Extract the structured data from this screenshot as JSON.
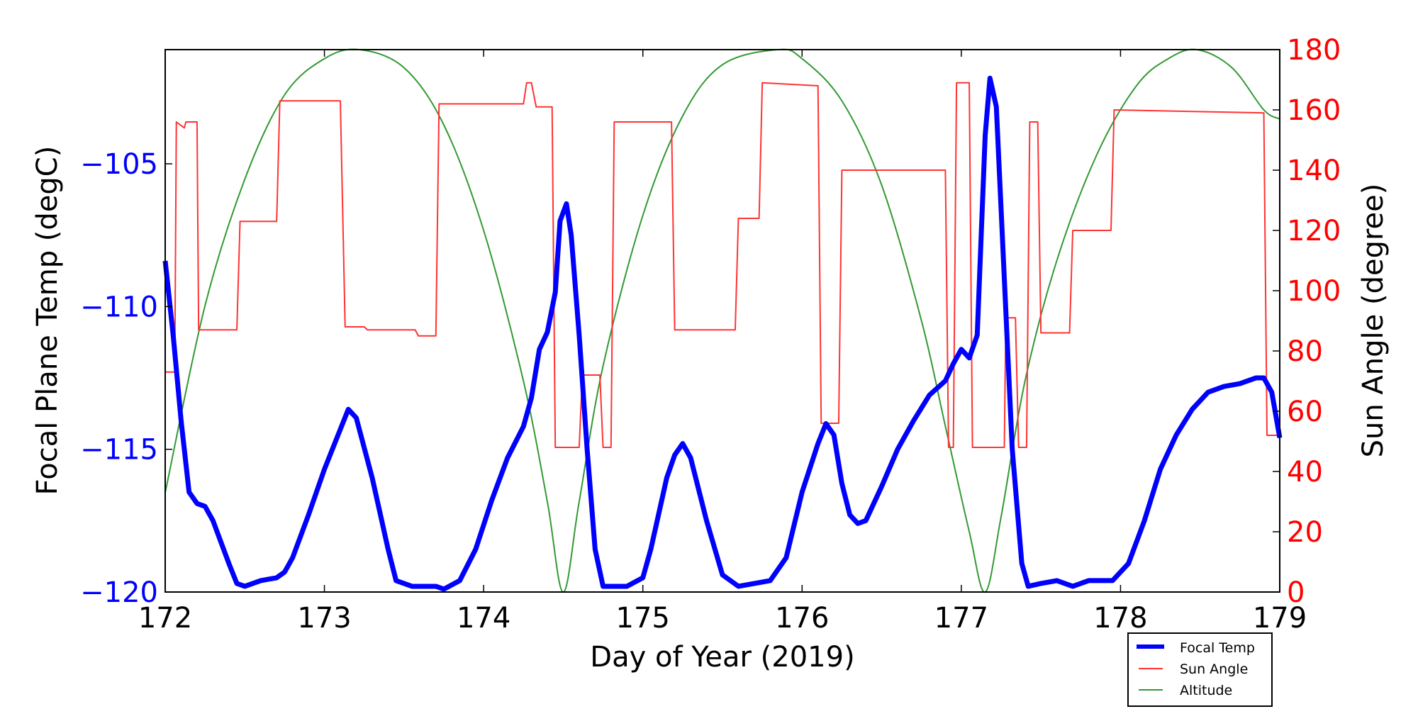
{
  "chart_data": {
    "type": "line",
    "xlabel": "Day of Year (2019)",
    "ylabel_left": "Focal Plane Temp (degC)",
    "ylabel_right": "Sun Angle (degree)",
    "xlim": [
      172,
      179
    ],
    "ylim_left": [
      -120,
      -101
    ],
    "ylim_right": [
      0,
      180
    ],
    "xticks": [
      172,
      173,
      174,
      175,
      176,
      177,
      178,
      179
    ],
    "yticks_left": [
      -120,
      -115,
      -110,
      -105
    ],
    "yticks_right": [
      0,
      20,
      40,
      60,
      80,
      100,
      120,
      140,
      160,
      180
    ],
    "grid": false,
    "legend_placement": "below-right",
    "colors": {
      "left_axis": "#0000ff",
      "right_axis": "#ff0000",
      "focal": "#0000ff",
      "sun": "#ff3333",
      "altitude": "#339933"
    },
    "series": [
      {
        "name": "Focal Temp",
        "axis": "left",
        "points": [
          [
            172.0,
            -108.4
          ],
          [
            172.05,
            -111
          ],
          [
            172.1,
            -114
          ],
          [
            172.15,
            -116.5
          ],
          [
            172.2,
            -116.9
          ],
          [
            172.25,
            -117
          ],
          [
            172.3,
            -117.5
          ],
          [
            172.4,
            -119
          ],
          [
            172.45,
            -119.7
          ],
          [
            172.5,
            -119.8
          ],
          [
            172.6,
            -119.6
          ],
          [
            172.7,
            -119.5
          ],
          [
            172.75,
            -119.3
          ],
          [
            172.8,
            -118.8
          ],
          [
            172.9,
            -117.3
          ],
          [
            173.0,
            -115.7
          ],
          [
            173.1,
            -114.3
          ],
          [
            173.15,
            -113.6
          ],
          [
            173.2,
            -113.9
          ],
          [
            173.3,
            -116
          ],
          [
            173.4,
            -118.5
          ],
          [
            173.45,
            -119.6
          ],
          [
            173.55,
            -119.8
          ],
          [
            173.7,
            -119.8
          ],
          [
            173.75,
            -119.9
          ],
          [
            173.85,
            -119.6
          ],
          [
            173.95,
            -118.5
          ],
          [
            174.05,
            -116.8
          ],
          [
            174.15,
            -115.3
          ],
          [
            174.25,
            -114.2
          ],
          [
            174.3,
            -113.2
          ],
          [
            174.35,
            -111.5
          ],
          [
            174.4,
            -110.9
          ],
          [
            174.45,
            -109.5
          ],
          [
            174.48,
            -107
          ],
          [
            174.52,
            -106.4
          ],
          [
            174.55,
            -107.5
          ],
          [
            174.6,
            -111
          ],
          [
            174.65,
            -115
          ],
          [
            174.7,
            -118.5
          ],
          [
            174.75,
            -119.8
          ],
          [
            174.85,
            -119.8
          ],
          [
            174.9,
            -119.8
          ],
          [
            175.0,
            -119.5
          ],
          [
            175.05,
            -118.5
          ],
          [
            175.15,
            -116
          ],
          [
            175.2,
            -115.2
          ],
          [
            175.25,
            -114.8
          ],
          [
            175.3,
            -115.3
          ],
          [
            175.4,
            -117.5
          ],
          [
            175.5,
            -119.4
          ],
          [
            175.6,
            -119.8
          ],
          [
            175.7,
            -119.7
          ],
          [
            175.8,
            -119.6
          ],
          [
            175.9,
            -118.8
          ],
          [
            176.0,
            -116.5
          ],
          [
            176.1,
            -114.8
          ],
          [
            176.15,
            -114.1
          ],
          [
            176.2,
            -114.5
          ],
          [
            176.25,
            -116.2
          ],
          [
            176.3,
            -117.3
          ],
          [
            176.35,
            -117.6
          ],
          [
            176.4,
            -117.5
          ],
          [
            176.5,
            -116.3
          ],
          [
            176.6,
            -115
          ],
          [
            176.7,
            -114
          ],
          [
            176.8,
            -113.1
          ],
          [
            176.9,
            -112.6
          ],
          [
            176.95,
            -112
          ],
          [
            177.0,
            -111.5
          ],
          [
            177.05,
            -111.8
          ],
          [
            177.1,
            -111
          ],
          [
            177.15,
            -104
          ],
          [
            177.18,
            -102
          ],
          [
            177.22,
            -103
          ],
          [
            177.27,
            -109
          ],
          [
            177.32,
            -115
          ],
          [
            177.38,
            -119
          ],
          [
            177.42,
            -119.8
          ],
          [
            177.5,
            -119.7
          ],
          [
            177.6,
            -119.6
          ],
          [
            177.7,
            -119.8
          ],
          [
            177.8,
            -119.6
          ],
          [
            177.95,
            -119.6
          ],
          [
            178.05,
            -119
          ],
          [
            178.15,
            -117.5
          ],
          [
            178.25,
            -115.7
          ],
          [
            178.35,
            -114.5
          ],
          [
            178.45,
            -113.6
          ],
          [
            178.55,
            -113
          ],
          [
            178.65,
            -112.8
          ],
          [
            178.75,
            -112.7
          ],
          [
            178.85,
            -112.5
          ],
          [
            178.9,
            -112.5
          ],
          [
            178.95,
            -113
          ],
          [
            179.0,
            -114.6
          ]
        ]
      },
      {
        "name": "Sun Angle",
        "axis": "right",
        "points": [
          [
            172.0,
            73
          ],
          [
            172.06,
            73
          ],
          [
            172.07,
            156
          ],
          [
            172.12,
            154
          ],
          [
            172.13,
            156
          ],
          [
            172.2,
            156
          ],
          [
            172.21,
            87
          ],
          [
            172.45,
            87
          ],
          [
            172.47,
            123
          ],
          [
            172.7,
            123
          ],
          [
            172.72,
            163
          ],
          [
            173.1,
            163
          ],
          [
            173.13,
            88
          ],
          [
            173.25,
            88
          ],
          [
            173.27,
            87
          ],
          [
            173.57,
            87
          ],
          [
            173.59,
            85
          ],
          [
            173.7,
            85
          ],
          [
            173.72,
            162
          ],
          [
            174.25,
            162
          ],
          [
            174.27,
            169
          ],
          [
            174.3,
            169
          ],
          [
            174.33,
            161
          ],
          [
            174.43,
            161
          ],
          [
            174.45,
            48
          ],
          [
            174.6,
            48
          ],
          [
            174.62,
            72
          ],
          [
            174.73,
            72
          ],
          [
            174.75,
            48
          ],
          [
            174.8,
            48
          ],
          [
            174.82,
            156
          ],
          [
            175.18,
            156
          ],
          [
            175.2,
            87
          ],
          [
            175.58,
            87
          ],
          [
            175.6,
            124
          ],
          [
            175.73,
            124
          ],
          [
            175.75,
            169
          ],
          [
            176.1,
            168
          ],
          [
            176.12,
            56
          ],
          [
            176.23,
            56
          ],
          [
            176.25,
            140
          ],
          [
            176.9,
            140
          ],
          [
            176.92,
            48
          ],
          [
            176.95,
            48
          ],
          [
            176.97,
            169
          ],
          [
            177.05,
            169
          ],
          [
            177.07,
            48
          ],
          [
            177.27,
            48
          ],
          [
            177.28,
            91
          ],
          [
            177.34,
            91
          ],
          [
            177.36,
            48
          ],
          [
            177.41,
            48
          ],
          [
            177.43,
            156
          ],
          [
            177.48,
            156
          ],
          [
            177.5,
            86
          ],
          [
            177.68,
            86
          ],
          [
            177.7,
            120
          ],
          [
            177.94,
            120
          ],
          [
            177.96,
            160
          ],
          [
            178.9,
            159
          ],
          [
            178.92,
            52
          ],
          [
            179.0,
            52
          ]
        ]
      },
      {
        "name": "Altitude",
        "axis": "right",
        "points": [
          [
            172.0,
            33
          ],
          [
            172.25,
            95
          ],
          [
            172.5,
            137
          ],
          [
            172.75,
            165
          ],
          [
            173.0,
            177
          ],
          [
            173.22,
            180
          ],
          [
            173.5,
            174
          ],
          [
            173.75,
            155
          ],
          [
            174.0,
            120
          ],
          [
            174.25,
            70
          ],
          [
            174.4,
            30
          ],
          [
            174.5,
            0
          ],
          [
            174.6,
            30
          ],
          [
            174.75,
            75
          ],
          [
            175.0,
            125
          ],
          [
            175.25,
            158
          ],
          [
            175.5,
            175
          ],
          [
            175.85,
            180
          ],
          [
            176.0,
            177
          ],
          [
            176.25,
            163
          ],
          [
            176.5,
            135
          ],
          [
            176.75,
            90
          ],
          [
            176.9,
            55
          ],
          [
            177.05,
            20
          ],
          [
            177.15,
            0
          ],
          [
            177.25,
            25
          ],
          [
            177.4,
            70
          ],
          [
            177.6,
            110
          ],
          [
            177.85,
            145
          ],
          [
            178.1,
            168
          ],
          [
            178.3,
            177
          ],
          [
            178.48,
            180
          ],
          [
            178.7,
            174
          ],
          [
            178.9,
            160
          ],
          [
            179.0,
            157
          ]
        ]
      }
    ]
  }
}
